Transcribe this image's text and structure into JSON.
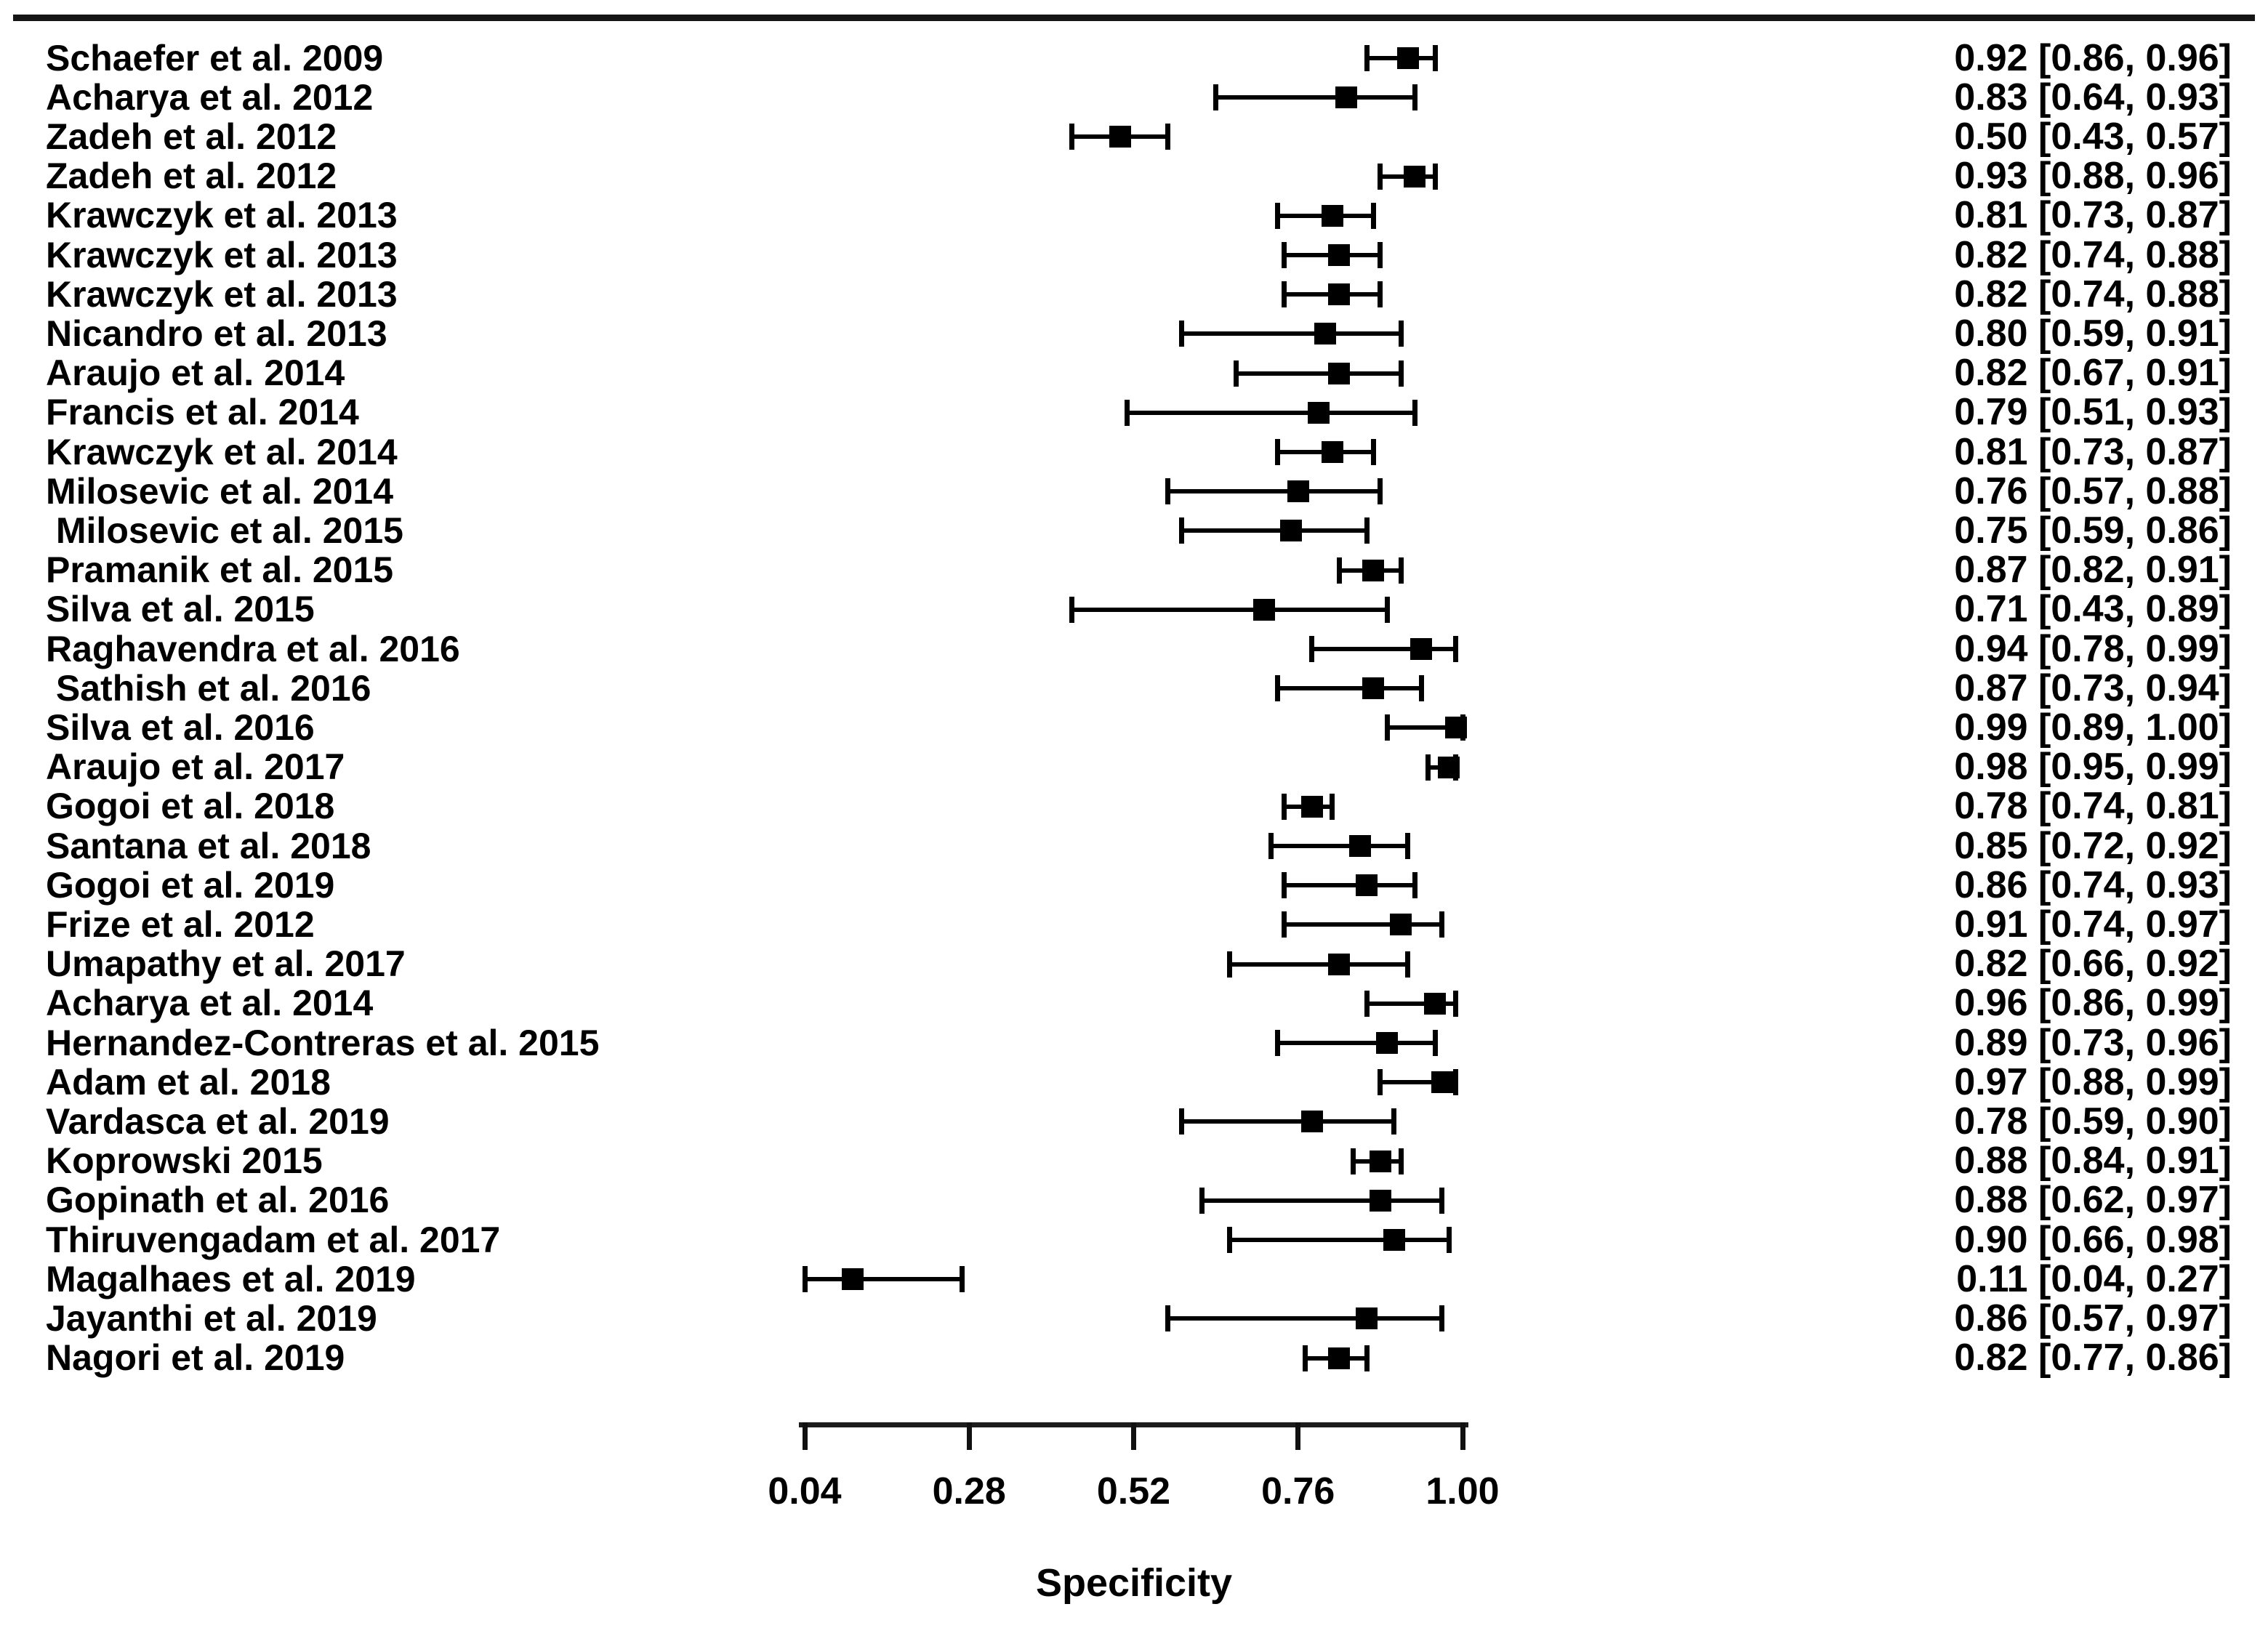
{
  "chart_data": {
    "type": "scatter",
    "subtype": "forest-plot",
    "xlabel": "Specificity",
    "xlim": [
      0.04,
      1.0
    ],
    "x_ticks": [
      0.04,
      0.28,
      0.52,
      0.76,
      1.0
    ],
    "x_tick_labels": [
      "0.04",
      "0.28",
      "0.52",
      "0.76",
      "1.00"
    ],
    "grid": false,
    "legend": false,
    "marker": "black-square-with-capped-error-bars",
    "studies": [
      {
        "label": "Schaefer et al. 2009",
        "estimate": 0.92,
        "ci_low": 0.86,
        "ci_high": 0.96,
        "value_text": "0.92 [0.86, 0.96]"
      },
      {
        "label": "Acharya et al. 2012",
        "estimate": 0.83,
        "ci_low": 0.64,
        "ci_high": 0.93,
        "value_text": "0.83 [0.64, 0.93]"
      },
      {
        "label": "Zadeh et al. 2012",
        "estimate": 0.5,
        "ci_low": 0.43,
        "ci_high": 0.57,
        "value_text": "0.50 [0.43, 0.57]"
      },
      {
        "label": "Zadeh et al. 2012",
        "estimate": 0.93,
        "ci_low": 0.88,
        "ci_high": 0.96,
        "value_text": "0.93 [0.88, 0.96]"
      },
      {
        "label": "Krawczyk et al. 2013",
        "estimate": 0.81,
        "ci_low": 0.73,
        "ci_high": 0.87,
        "value_text": "0.81 [0.73, 0.87]"
      },
      {
        "label": "Krawczyk et al. 2013",
        "estimate": 0.82,
        "ci_low": 0.74,
        "ci_high": 0.88,
        "value_text": "0.82 [0.74, 0.88]"
      },
      {
        "label": "Krawczyk et al. 2013",
        "estimate": 0.82,
        "ci_low": 0.74,
        "ci_high": 0.88,
        "value_text": "0.82 [0.74, 0.88]"
      },
      {
        "label": "Nicandro et al. 2013",
        "estimate": 0.8,
        "ci_low": 0.59,
        "ci_high": 0.91,
        "value_text": "0.80 [0.59, 0.91]"
      },
      {
        "label": "Araujo et al. 2014",
        "estimate": 0.82,
        "ci_low": 0.67,
        "ci_high": 0.91,
        "value_text": "0.82 [0.67, 0.91]"
      },
      {
        "label": "Francis et al. 2014",
        "estimate": 0.79,
        "ci_low": 0.51,
        "ci_high": 0.93,
        "value_text": "0.79 [0.51, 0.93]"
      },
      {
        "label": "Krawczyk et al. 2014",
        "estimate": 0.81,
        "ci_low": 0.73,
        "ci_high": 0.87,
        "value_text": "0.81 [0.73, 0.87]"
      },
      {
        "label": "Milosevic et al. 2014",
        "estimate": 0.76,
        "ci_low": 0.57,
        "ci_high": 0.88,
        "value_text": "0.76 [0.57, 0.88]"
      },
      {
        "label": " Milosevic et al. 2015",
        "estimate": 0.75,
        "ci_low": 0.59,
        "ci_high": 0.86,
        "value_text": "0.75 [0.59, 0.86]"
      },
      {
        "label": "Pramanik et al. 2015",
        "estimate": 0.87,
        "ci_low": 0.82,
        "ci_high": 0.91,
        "value_text": "0.87 [0.82, 0.91]"
      },
      {
        "label": "Silva et al. 2015",
        "estimate": 0.71,
        "ci_low": 0.43,
        "ci_high": 0.89,
        "value_text": "0.71 [0.43, 0.89]"
      },
      {
        "label": "Raghavendra et al. 2016",
        "estimate": 0.94,
        "ci_low": 0.78,
        "ci_high": 0.99,
        "value_text": "0.94 [0.78, 0.99]"
      },
      {
        "label": " Sathish et al. 2016",
        "estimate": 0.87,
        "ci_low": 0.73,
        "ci_high": 0.94,
        "value_text": "0.87 [0.73, 0.94]"
      },
      {
        "label": "Silva et al. 2016",
        "estimate": 0.99,
        "ci_low": 0.89,
        "ci_high": 1.0,
        "value_text": "0.99 [0.89, 1.00]"
      },
      {
        "label": "Araujo et al. 2017",
        "estimate": 0.98,
        "ci_low": 0.95,
        "ci_high": 0.99,
        "value_text": "0.98 [0.95, 0.99]"
      },
      {
        "label": "Gogoi et al. 2018",
        "estimate": 0.78,
        "ci_low": 0.74,
        "ci_high": 0.81,
        "value_text": "0.78 [0.74, 0.81]"
      },
      {
        "label": "Santana et al. 2018",
        "estimate": 0.85,
        "ci_low": 0.72,
        "ci_high": 0.92,
        "value_text": "0.85 [0.72, 0.92]"
      },
      {
        "label": "Gogoi et al. 2019",
        "estimate": 0.86,
        "ci_low": 0.74,
        "ci_high": 0.93,
        "value_text": "0.86 [0.74, 0.93]"
      },
      {
        "label": "Frize et al. 2012",
        "estimate": 0.91,
        "ci_low": 0.74,
        "ci_high": 0.97,
        "value_text": "0.91 [0.74, 0.97]"
      },
      {
        "label": "Umapathy et al. 2017",
        "estimate": 0.82,
        "ci_low": 0.66,
        "ci_high": 0.92,
        "value_text": "0.82 [0.66, 0.92]"
      },
      {
        "label": "Acharya et al. 2014",
        "estimate": 0.96,
        "ci_low": 0.86,
        "ci_high": 0.99,
        "value_text": "0.96 [0.86, 0.99]"
      },
      {
        "label": "Hernandez-Contreras et al. 2015",
        "estimate": 0.89,
        "ci_low": 0.73,
        "ci_high": 0.96,
        "value_text": "0.89 [0.73, 0.96]"
      },
      {
        "label": "Adam et al. 2018",
        "estimate": 0.97,
        "ci_low": 0.88,
        "ci_high": 0.99,
        "value_text": "0.97 [0.88, 0.99]"
      },
      {
        "label": "Vardasca et al. 2019",
        "estimate": 0.78,
        "ci_low": 0.59,
        "ci_high": 0.9,
        "value_text": "0.78 [0.59, 0.90]"
      },
      {
        "label": "Koprowski 2015",
        "estimate": 0.88,
        "ci_low": 0.84,
        "ci_high": 0.91,
        "value_text": "0.88 [0.84, 0.91]"
      },
      {
        "label": "Gopinath et al. 2016",
        "estimate": 0.88,
        "ci_low": 0.62,
        "ci_high": 0.97,
        "value_text": "0.88 [0.62, 0.97]"
      },
      {
        "label": "Thiruvengadam et al. 2017",
        "estimate": 0.9,
        "ci_low": 0.66,
        "ci_high": 0.98,
        "value_text": "0.90 [0.66, 0.98]"
      },
      {
        "label": "Magalhaes et al. 2019",
        "estimate": 0.11,
        "ci_low": 0.04,
        "ci_high": 0.27,
        "value_text": "0.11 [0.04, 0.27]"
      },
      {
        "label": "Jayanthi et al. 2019",
        "estimate": 0.86,
        "ci_low": 0.57,
        "ci_high": 0.97,
        "value_text": "0.86 [0.57, 0.97]"
      },
      {
        "label": "Nagori et al. 2019",
        "estimate": 0.82,
        "ci_low": 0.77,
        "ci_high": 0.86,
        "value_text": "0.82 [0.77, 0.86]"
      }
    ],
    "colors": {
      "marker": "#000000",
      "line": "#000000",
      "text": "#000000",
      "background": "#ffffff"
    }
  }
}
